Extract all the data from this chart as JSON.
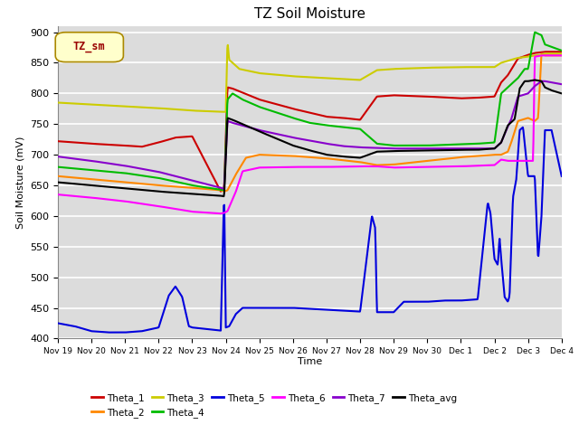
{
  "title": "TZ Soil Moisture",
  "xlabel": "Time",
  "ylabel": "Soil Moisture (mV)",
  "ylim": [
    400,
    910
  ],
  "yticks": [
    400,
    450,
    500,
    550,
    600,
    650,
    700,
    750,
    800,
    850,
    900
  ],
  "bg_color": "#dcdcdc",
  "legend_label": "TZ_sm",
  "series_colors": {
    "Theta_1": "#cc0000",
    "Theta_2": "#ff8800",
    "Theta_3": "#cccc00",
    "Theta_4": "#00bb00",
    "Theta_5": "#0000dd",
    "Theta_6": "#ff00ff",
    "Theta_7": "#8800cc",
    "Theta_avg": "#000000"
  },
  "xtick_labels": [
    "Nov 19",
    "Nov 20",
    "Nov 21",
    "Nov 22",
    "Nov 23",
    "Nov 24",
    "Nov 25",
    "Nov 26",
    "Nov 27",
    "Nov 28",
    "Nov 29",
    "Nov 30",
    "Dec 1",
    "Dec 2",
    "Dec 3",
    "Dec 4"
  ]
}
